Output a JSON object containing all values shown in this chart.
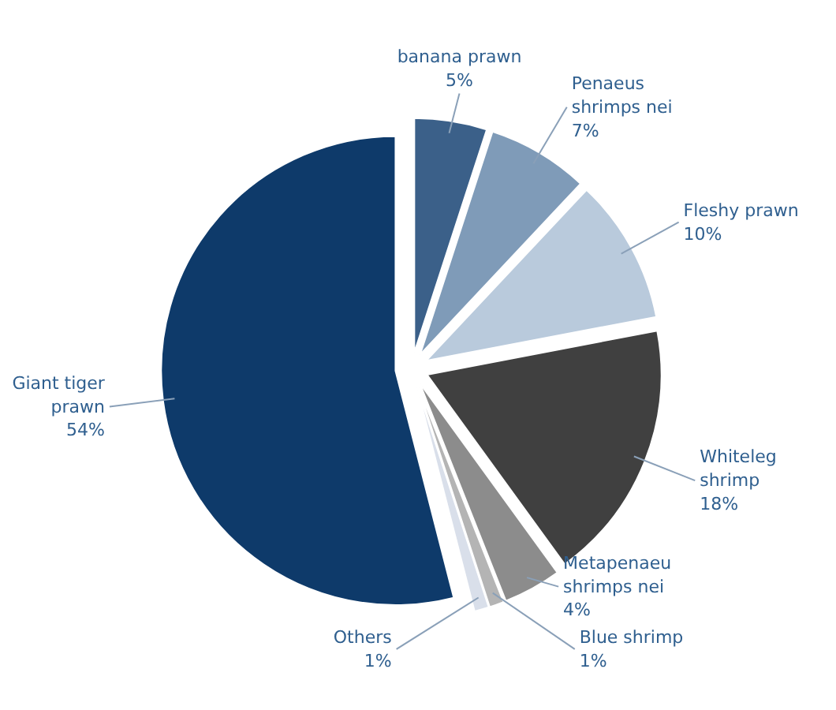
{
  "chart_data": {
    "type": "pie",
    "categories": [
      "banana prawn",
      "Penaeus shrimps nei",
      "Fleshy prawn",
      "Whiteleg shrimp",
      "Metapenaeu shrimps nei",
      "Blue shrimp",
      "Others",
      "Giant tiger prawn"
    ],
    "values": [
      5,
      7,
      10,
      18,
      4,
      1,
      1,
      54
    ],
    "value_labels": [
      "5%",
      "7%",
      "10%",
      "18%",
      "4%",
      "1%",
      "1%",
      "54%"
    ],
    "colors": [
      "#3b6089",
      "#7f9bb8",
      "#b9cadc",
      "#404040",
      "#8c8c8c",
      "#b4b4b4",
      "#d9dfea",
      "#0e3a6a"
    ]
  }
}
